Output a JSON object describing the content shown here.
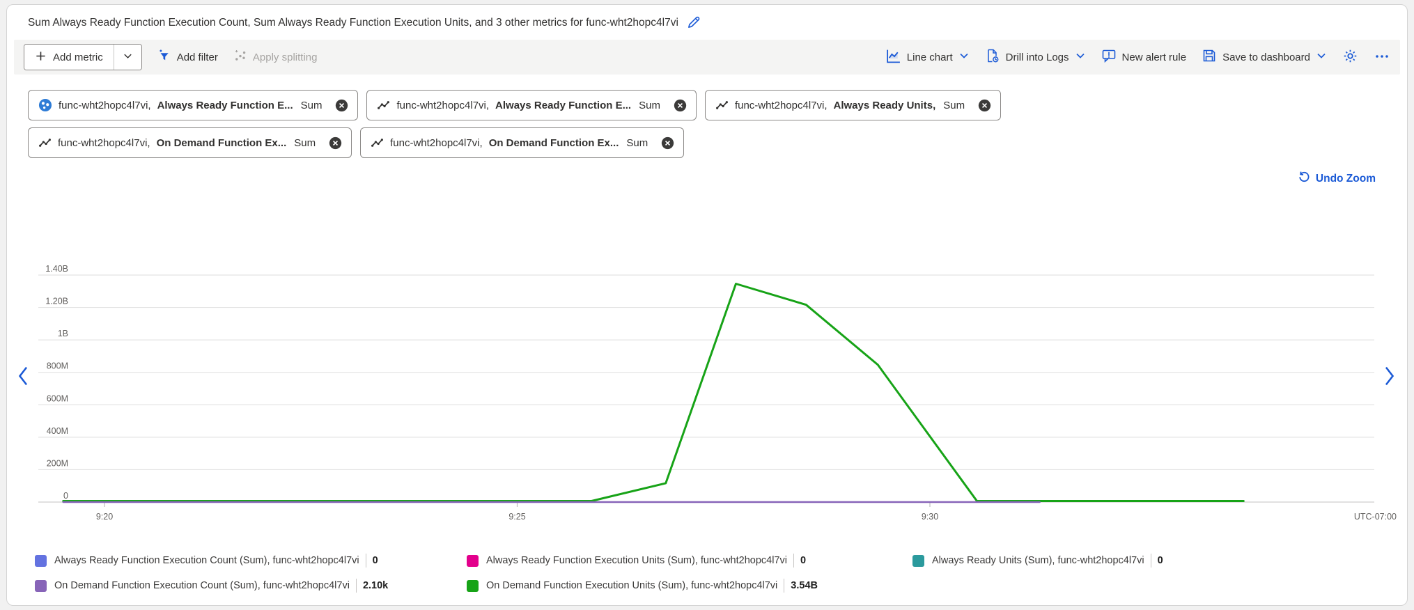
{
  "title": {
    "text": "Sum Always Ready Function Execution Count, Sum Always Ready Function Execution Units, and 3 other metrics for func-wht2hopc4l7vi"
  },
  "toolbar": {
    "add_metric": "Add metric",
    "add_filter": "Add filter",
    "apply_splitting": "Apply splitting",
    "chart_type": "Line chart",
    "drill_into_logs": "Drill into Logs",
    "new_alert_rule": "New alert rule",
    "save_to_dashboard": "Save to dashboard"
  },
  "metric_pills": [
    {
      "icon": "function-app-icon",
      "resource": "func-wht2hopc4l7vi,",
      "metric": "Always Ready Function E...",
      "aggregation": "Sum"
    },
    {
      "icon": "metric-line-icon",
      "resource": "func-wht2hopc4l7vi,",
      "metric": "Always Ready Function E...",
      "aggregation": "Sum"
    },
    {
      "icon": "metric-line-icon",
      "resource": "func-wht2hopc4l7vi,",
      "metric": "Always Ready Units,",
      "aggregation": "Sum"
    },
    {
      "icon": "metric-line-icon",
      "resource": "func-wht2hopc4l7vi,",
      "metric": "On Demand Function Ex...",
      "aggregation": "Sum"
    },
    {
      "icon": "metric-line-icon",
      "resource": "func-wht2hopc4l7vi,",
      "metric": "On Demand Function Ex...",
      "aggregation": "Sum"
    }
  ],
  "chart": {
    "undo_zoom_label": "Undo Zoom"
  },
  "chart_data": {
    "type": "line",
    "title": "",
    "x_axis": {
      "tick_labels": [
        "9:20",
        "9:25",
        "9:30"
      ],
      "tick_minutes_after_920": [
        0,
        5,
        10
      ],
      "timezone_label": "UTC-07:00"
    },
    "y_axis": {
      "tick_labels": [
        "0",
        "200M",
        "400M",
        "600M",
        "800M",
        "1B",
        "1.20B",
        "1.40B"
      ],
      "tick_values": [
        0,
        200000000,
        400000000,
        600000000,
        800000000,
        1000000000,
        1200000000,
        1400000000
      ],
      "ylim": [
        0,
        1450000000
      ]
    },
    "grid": true,
    "legend_position": "bottom",
    "series": [
      {
        "name": "Always Ready Function Execution Count (Sum)",
        "color": "#6372e0",
        "total": "0",
        "points": [
          [
            -0.5,
            0
          ],
          [
            11.33,
            0
          ]
        ]
      },
      {
        "name": "Always Ready Function Execution Units (Sum)",
        "color": "#e3008c",
        "total": "0",
        "points": [
          [
            -0.5,
            0
          ],
          [
            11.33,
            0
          ]
        ]
      },
      {
        "name": "Always Ready Units (Sum)",
        "color": "#2b9a9d",
        "total": "0",
        "points": [
          [
            -0.5,
            0
          ],
          [
            11.33,
            0
          ]
        ]
      },
      {
        "name": "On Demand Function Execution Count (Sum)",
        "color": "#8764b8",
        "total": "2.10k",
        "points": [
          [
            -0.5,
            0
          ],
          [
            11.33,
            0
          ]
        ]
      },
      {
        "name": "On Demand Function Execution Units (Sum)",
        "color": "#17a317",
        "total": "3.54B",
        "points": [
          [
            -0.5,
            0
          ],
          [
            5.9,
            0
          ],
          [
            6.8,
            110000000
          ],
          [
            7.65,
            1340000000
          ],
          [
            8.5,
            1210000000
          ],
          [
            9.37,
            840000000
          ],
          [
            10.57,
            0
          ],
          [
            13.8,
            0
          ]
        ]
      }
    ]
  },
  "legend": [
    {
      "color": "#6372e0",
      "label": "Always Ready Function Execution Count (Sum), func-wht2hopc4l7vi",
      "value": "0"
    },
    {
      "color": "#e3008c",
      "label": "Always Ready Function Execution Units (Sum), func-wht2hopc4l7vi",
      "value": "0"
    },
    {
      "color": "#2b9a9d",
      "label": "Always Ready Units (Sum), func-wht2hopc4l7vi",
      "value": "0"
    },
    {
      "color": "#8764b8",
      "label": "On Demand Function Execution Count (Sum), func-wht2hopc4l7vi",
      "value": "2.10k"
    },
    {
      "color": "#17a317",
      "label": "On Demand Function Execution Units (Sum), func-wht2hopc4l7vi",
      "value": "3.54B"
    }
  ],
  "colors": {
    "accent_blue": "#1b5ad6",
    "toolbar_bg": "#f4f4f3",
    "grid_line": "#e4e4e4",
    "axis_text": "#605e5c"
  }
}
